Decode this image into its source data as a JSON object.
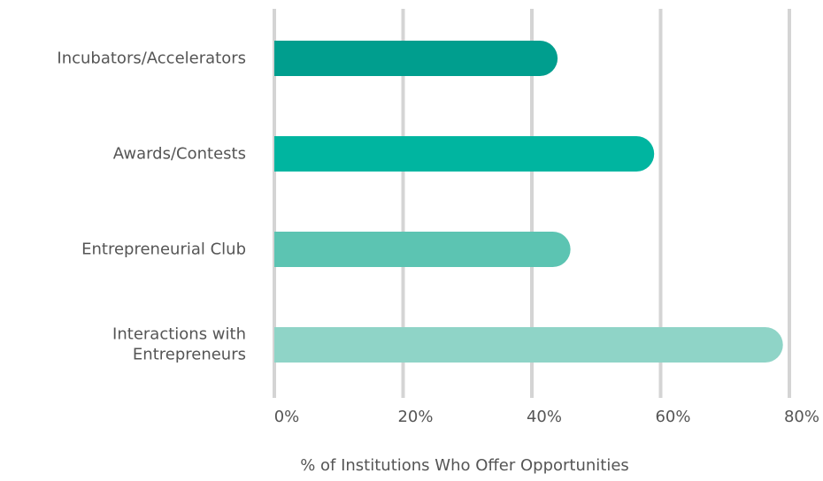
{
  "chart_data": {
    "type": "barh",
    "categories": [
      "Incubators/Accelerators",
      "Awards/Contests",
      "Entrepreneurial Club",
      "Interactions with\nEntrepreneurs"
    ],
    "values": [
      44,
      59,
      46,
      79
    ],
    "colors": [
      "#009e8e",
      "#00b5a0",
      "#5cc4b2",
      "#8fd4c7"
    ],
    "xlabel": "% of Institutions Who Offer Opportunities",
    "xlim": [
      0,
      80
    ],
    "xticks": [
      {
        "value": 0,
        "label": "0%"
      },
      {
        "value": 20,
        "label": "20%"
      },
      {
        "value": 40,
        "label": "40%"
      },
      {
        "value": 60,
        "label": "60%"
      },
      {
        "value": 80,
        "label": "80%"
      }
    ],
    "grid": true
  }
}
